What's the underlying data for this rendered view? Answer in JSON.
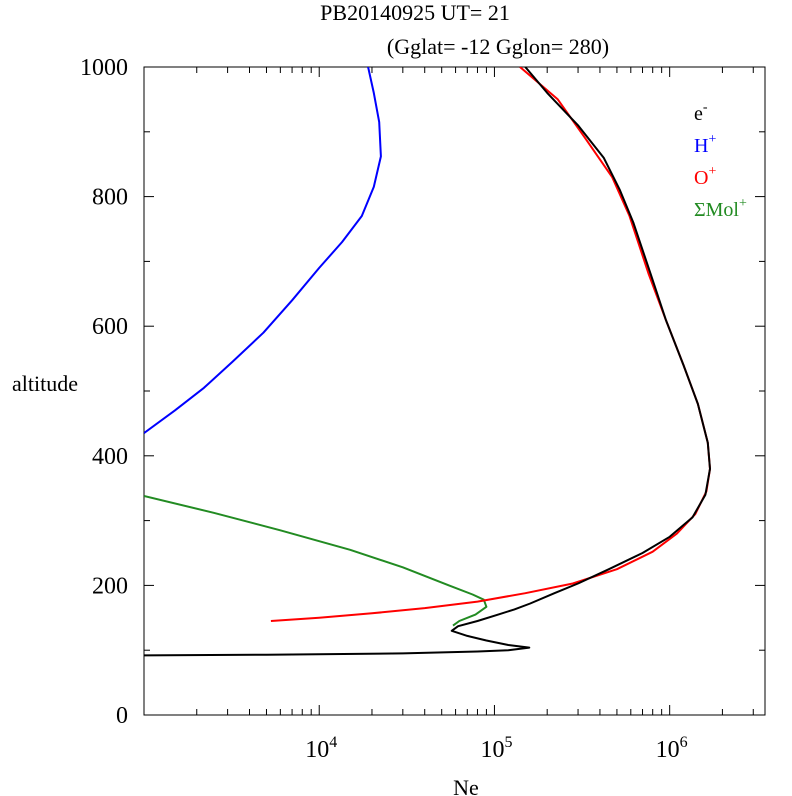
{
  "chart_data": {
    "type": "line",
    "title_line1": "PB20140925   UT=  21",
    "title_line2": "(Gglat= -12   Gglon=  280)",
    "xlabel": "Ne",
    "ylabel": "altitude",
    "x_scale": "log",
    "xlim": [
      1000,
      3500000
    ],
    "ylim": [
      0,
      1000
    ],
    "y_ticks": [
      {
        "value": 0,
        "label": "0"
      },
      {
        "value": 200,
        "label": "200"
      },
      {
        "value": 400,
        "label": "400"
      },
      {
        "value": 600,
        "label": "600"
      },
      {
        "value": 800,
        "label": "800"
      },
      {
        "value": 1000,
        "label": "1000"
      }
    ],
    "x_ticks": [
      {
        "value": 10000,
        "base": "10",
        "exp": "4"
      },
      {
        "value": 100000,
        "base": "10",
        "exp": "5"
      },
      {
        "value": 1000000,
        "base": "10",
        "exp": "6"
      }
    ],
    "legend_position": "top-right",
    "series": [
      {
        "key": "e",
        "base": "e",
        "sup": "-",
        "color": "#000000",
        "points": [
          [
            1000,
            92
          ],
          [
            5000,
            93
          ],
          [
            30000,
            95
          ],
          [
            80000,
            98
          ],
          [
            120000,
            100
          ],
          [
            158000,
            104
          ],
          [
            120000,
            108
          ],
          [
            90000,
            115
          ],
          [
            70000,
            122
          ],
          [
            57000,
            130
          ],
          [
            62000,
            137
          ],
          [
            80000,
            145
          ],
          [
            105000,
            155
          ],
          [
            130000,
            163
          ],
          [
            160000,
            172
          ],
          [
            220000,
            188
          ],
          [
            300000,
            203
          ],
          [
            450000,
            225
          ],
          [
            700000,
            250
          ],
          [
            1000000,
            275
          ],
          [
            1350000,
            305
          ],
          [
            1600000,
            340
          ],
          [
            1700000,
            380
          ],
          [
            1650000,
            420
          ],
          [
            1450000,
            480
          ],
          [
            1200000,
            540
          ],
          [
            950000,
            610
          ],
          [
            780000,
            680
          ],
          [
            620000,
            760
          ],
          [
            520000,
            810
          ],
          [
            420000,
            860
          ],
          [
            300000,
            910
          ],
          [
            200000,
            960
          ],
          [
            150000,
            1000
          ]
        ]
      },
      {
        "key": "H",
        "base": "H",
        "sup": "+",
        "color": "#0000ff",
        "points": [
          [
            1000,
            435
          ],
          [
            1500,
            470
          ],
          [
            2200,
            505
          ],
          [
            3200,
            545
          ],
          [
            4800,
            590
          ],
          [
            7000,
            640
          ],
          [
            10000,
            690
          ],
          [
            13500,
            730
          ],
          [
            17500,
            770
          ],
          [
            20500,
            815
          ],
          [
            22500,
            862
          ],
          [
            22000,
            915
          ],
          [
            20500,
            960
          ],
          [
            19000,
            1000
          ]
        ]
      },
      {
        "key": "O",
        "base": "O",
        "sup": "+",
        "color": "#ff0000",
        "points": [
          [
            5300,
            145
          ],
          [
            10000,
            150
          ],
          [
            20000,
            157
          ],
          [
            40000,
            165
          ],
          [
            80000,
            175
          ],
          [
            150000,
            188
          ],
          [
            280000,
            203
          ],
          [
            500000,
            225
          ],
          [
            800000,
            252
          ],
          [
            1100000,
            280
          ],
          [
            1400000,
            310
          ],
          [
            1620000,
            345
          ],
          [
            1700000,
            380
          ],
          [
            1650000,
            420
          ],
          [
            1450000,
            480
          ],
          [
            1200000,
            540
          ],
          [
            950000,
            610
          ],
          [
            760000,
            680
          ],
          [
            590000,
            770
          ],
          [
            470000,
            830
          ],
          [
            330000,
            890
          ],
          [
            230000,
            950
          ],
          [
            140000,
            1000
          ]
        ]
      },
      {
        "key": "Mol",
        "base": "ΣMol",
        "sup": "+",
        "color": "#228b22",
        "points": [
          [
            1000,
            338
          ],
          [
            2500,
            312
          ],
          [
            6000,
            285
          ],
          [
            15000,
            255
          ],
          [
            30000,
            228
          ],
          [
            55000,
            200
          ],
          [
            75000,
            186
          ],
          [
            87000,
            178
          ],
          [
            90000,
            167
          ],
          [
            78000,
            155
          ],
          [
            63000,
            145
          ],
          [
            58000,
            138
          ]
        ]
      }
    ]
  }
}
